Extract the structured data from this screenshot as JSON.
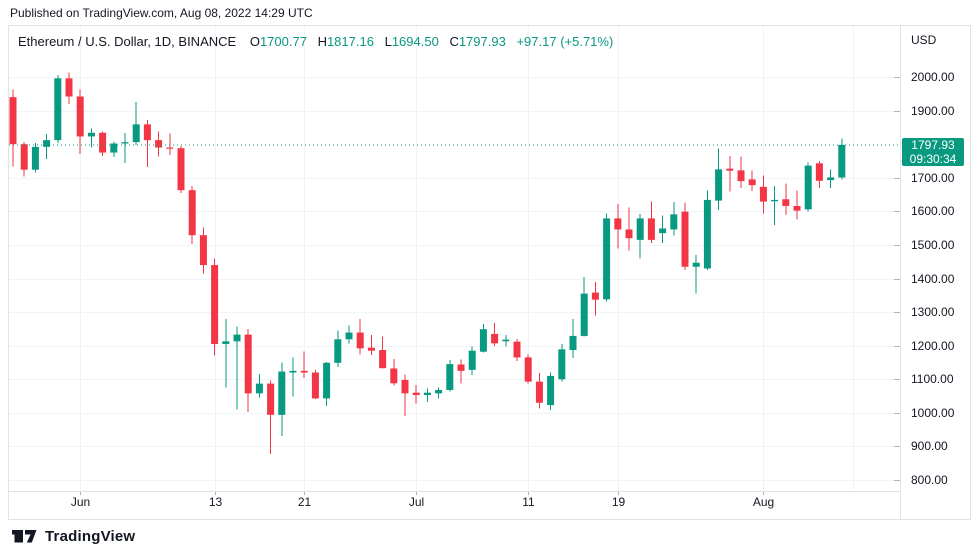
{
  "published_line": "Published on TradingView.com, Aug 08, 2022 14:29 UTC",
  "header": {
    "symbol": "Ethereum / U.S. Dollar, 1D, BINANCE",
    "ohlc": {
      "o_label": "O",
      "o": "1700.77",
      "h_label": "H",
      "h": "1817.16",
      "l_label": "L",
      "l": "1694.50",
      "c_label": "C",
      "c": "1797.93",
      "change": "+97.17 (+5.71%)"
    }
  },
  "price_axis": {
    "unit": "USD",
    "labels": [
      {
        "text": "2000.00",
        "value": 2000
      },
      {
        "text": "1900.00",
        "value": 1900
      },
      {
        "text": "1700.00",
        "value": 1700
      },
      {
        "text": "1600.00",
        "value": 1600
      },
      {
        "text": "1500.00",
        "value": 1500
      },
      {
        "text": "1400.00",
        "value": 1400
      },
      {
        "text": "1300.00",
        "value": 1300
      },
      {
        "text": "1200.00",
        "value": 1200
      },
      {
        "text": "1100.00",
        "value": 1100
      },
      {
        "text": "1000.00",
        "value": 1000
      },
      {
        "text": "900.00",
        "value": 900
      },
      {
        "text": "800.00",
        "value": 800
      }
    ],
    "badge": {
      "price": "1797.93",
      "countdown": "09:30:34"
    }
  },
  "colors": {
    "up": "#089981",
    "down": "#F23645",
    "text": "#131722",
    "grid": "#F0F3FA",
    "border": "#E0E3EB",
    "tick": "#B2B5BE",
    "badge_bg": "#089981"
  },
  "logo": {
    "text": "TradingView"
  },
  "chart_data": {
    "type": "candlestick",
    "title": "Ethereum / U.S. Dollar",
    "interval": "1D",
    "exchange": "BINANCE",
    "last_price": 1797.93,
    "ylim": [
      767,
      2152
    ],
    "price_gridlines": [
      2000,
      1900,
      1700,
      1600,
      1500,
      1400,
      1300,
      1200,
      1100,
      1000,
      900,
      800
    ],
    "time_ticks": [
      {
        "label": "Jun",
        "i": 6
      },
      {
        "label": "13",
        "i": 18
      },
      {
        "label": "21",
        "i": 26
      },
      {
        "label": "Jul",
        "i": 36
      },
      {
        "label": "11",
        "i": 46
      },
      {
        "label": "19",
        "i": 54
      },
      {
        "label": "Aug",
        "i": 67
      },
      {
        "label": "",
        "i": 75
      }
    ],
    "dates": [
      "2022-05-26",
      "2022-05-27",
      "2022-05-28",
      "2022-05-29",
      "2022-05-30",
      "2022-05-31",
      "2022-06-01",
      "2022-06-02",
      "2022-06-03",
      "2022-06-04",
      "2022-06-05",
      "2022-06-06",
      "2022-06-07",
      "2022-06-08",
      "2022-06-09",
      "2022-06-10",
      "2022-06-11",
      "2022-06-12",
      "2022-06-13",
      "2022-06-14",
      "2022-06-15",
      "2022-06-16",
      "2022-06-17",
      "2022-06-18",
      "2022-06-19",
      "2022-06-20",
      "2022-06-21",
      "2022-06-22",
      "2022-06-23",
      "2022-06-24",
      "2022-06-25",
      "2022-06-26",
      "2022-06-27",
      "2022-06-28",
      "2022-06-29",
      "2022-06-30",
      "2022-07-01",
      "2022-07-02",
      "2022-07-03",
      "2022-07-04",
      "2022-07-05",
      "2022-07-06",
      "2022-07-07",
      "2022-07-08",
      "2022-07-09",
      "2022-07-10",
      "2022-07-11",
      "2022-07-12",
      "2022-07-13",
      "2022-07-14",
      "2022-07-15",
      "2022-07-16",
      "2022-07-17",
      "2022-07-18",
      "2022-07-19",
      "2022-07-20",
      "2022-07-21",
      "2022-07-22",
      "2022-07-23",
      "2022-07-24",
      "2022-07-25",
      "2022-07-26",
      "2022-07-27",
      "2022-07-28",
      "2022-07-29",
      "2022-07-30",
      "2022-07-31",
      "2022-08-01",
      "2022-08-02",
      "2022-08-03",
      "2022-08-04",
      "2022-08-05",
      "2022-08-06",
      "2022-08-07",
      "2022-08-08"
    ],
    "open": [
      1940,
      1800,
      1724,
      1792,
      1812,
      1996,
      1942,
      1823,
      1834,
      1775,
      1802,
      1806,
      1859,
      1812,
      1790,
      1788,
      1663,
      1529,
      1440,
      1205,
      1213,
      1233,
      1058,
      1087,
      994,
      1120,
      1125,
      1120,
      1043,
      1149,
      1219,
      1239,
      1194,
      1187,
      1132,
      1098,
      1060,
      1053,
      1058,
      1068,
      1144,
      1128,
      1182,
      1235,
      1213,
      1212,
      1165,
      1093,
      1023,
      1100,
      1187,
      1229,
      1358,
      1338,
      1579,
      1546,
      1515,
      1579,
      1535,
      1546,
      1599,
      1435,
      1430,
      1632,
      1727,
      1722,
      1695,
      1673,
      1630,
      1636,
      1616,
      1606,
      1743,
      1693,
      1700.77
    ],
    "high": [
      1963,
      1806,
      1803,
      1831,
      2006,
      2013,
      1963,
      1847,
      1838,
      1808,
      1833,
      1925,
      1872,
      1837,
      1832,
      1794,
      1675,
      1552,
      1459,
      1279,
      1257,
      1249,
      1116,
      1097,
      1150,
      1165,
      1182,
      1128,
      1152,
      1245,
      1260,
      1280,
      1232,
      1227,
      1160,
      1114,
      1083,
      1073,
      1075,
      1157,
      1159,
      1197,
      1264,
      1268,
      1232,
      1220,
      1174,
      1119,
      1120,
      1205,
      1280,
      1405,
      1390,
      1593,
      1622,
      1612,
      1592,
      1629,
      1587,
      1628,
      1626,
      1470,
      1662,
      1787,
      1765,
      1764,
      1722,
      1707,
      1675,
      1683,
      1662,
      1745,
      1750,
      1725,
      1817.16
    ],
    "low": [
      1733,
      1704,
      1715,
      1756,
      1804,
      1920,
      1770,
      1790,
      1765,
      1762,
      1744,
      1797,
      1732,
      1763,
      1767,
      1655,
      1502,
      1415,
      1170,
      1075,
      1010,
      1003,
      1045,
      878,
      931,
      1048,
      1103,
      1041,
      1020,
      1137,
      1206,
      1173,
      1172,
      1132,
      1082,
      991,
      1028,
      1033,
      1042,
      1063,
      1088,
      1113,
      1180,
      1199,
      1197,
      1155,
      1088,
      1013,
      1008,
      1093,
      1164,
      1228,
      1290,
      1331,
      1490,
      1484,
      1460,
      1505,
      1506,
      1528,
      1425,
      1356,
      1425,
      1604,
      1659,
      1669,
      1660,
      1593,
      1560,
      1589,
      1576,
      1600,
      1670,
      1669,
      1694.5
    ],
    "close": [
      1800,
      1724,
      1792,
      1812,
      1996,
      1942,
      1823,
      1834,
      1775,
      1802,
      1806,
      1859,
      1812,
      1790,
      1788,
      1663,
      1529,
      1440,
      1205,
      1213,
      1233,
      1058,
      1087,
      994,
      1123,
      1125,
      1120,
      1043,
      1149,
      1219,
      1239,
      1192,
      1185,
      1133,
      1088,
      1058,
      1053,
      1060,
      1068,
      1145,
      1125,
      1185,
      1249,
      1207,
      1218,
      1165,
      1093,
      1030,
      1110,
      1189,
      1229,
      1355,
      1337,
      1579,
      1546,
      1520,
      1579,
      1515,
      1549,
      1591,
      1435,
      1447,
      1634,
      1725,
      1721,
      1690,
      1678,
      1629,
      1634,
      1616,
      1602,
      1736,
      1691,
      1701,
      1797.93
    ]
  }
}
